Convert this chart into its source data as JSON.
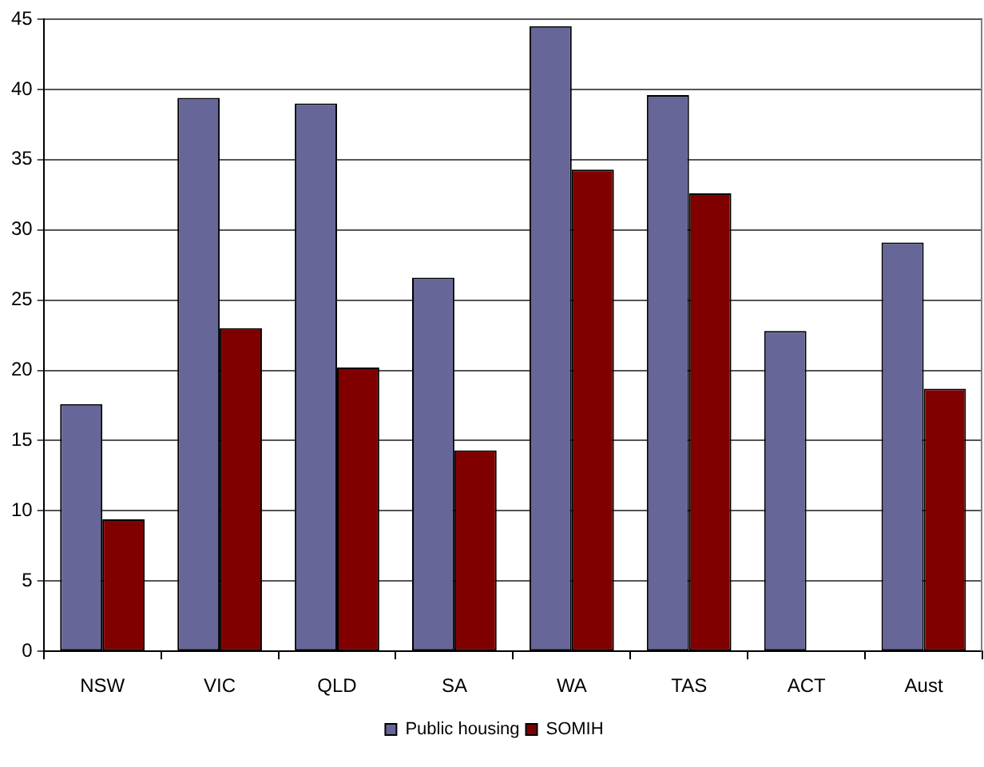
{
  "chart_data": {
    "type": "bar",
    "categories": [
      "NSW",
      "VIC",
      "QLD",
      "SA",
      "WA",
      "TAS",
      "ACT",
      "Aust"
    ],
    "series": [
      {
        "name": "Public housing",
        "color": "#666699",
        "values": [
          17.6,
          39.4,
          39.0,
          26.6,
          44.5,
          39.6,
          22.8,
          29.1
        ]
      },
      {
        "name": "SOMIH",
        "color": "#800000",
        "values": [
          9.4,
          23.0,
          20.2,
          14.3,
          34.3,
          32.6,
          null,
          18.7
        ]
      }
    ],
    "ylim": [
      0,
      45
    ],
    "yticks": [
      0,
      5,
      10,
      15,
      20,
      25,
      30,
      35,
      40,
      45
    ],
    "grid": "y",
    "legend": "bottom"
  }
}
